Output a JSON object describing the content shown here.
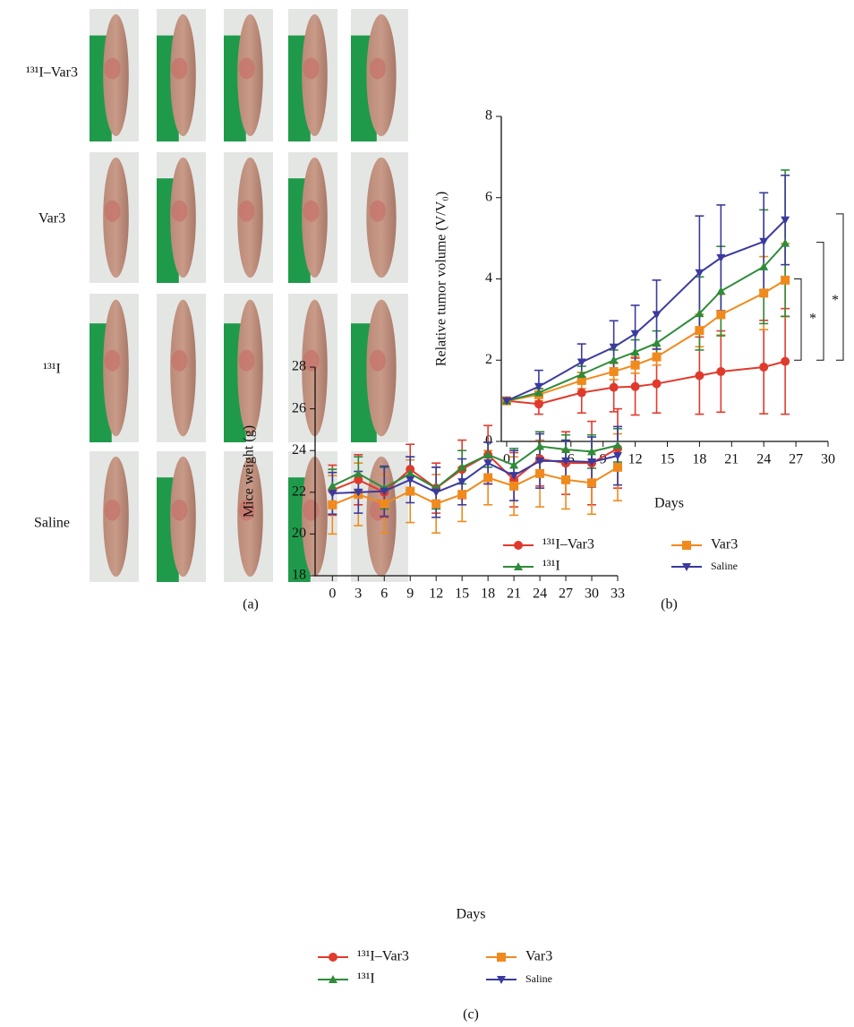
{
  "panel_a": {
    "row_labels": [
      "¹³¹I–Var3",
      "Var3",
      "¹³¹I",
      "Saline"
    ],
    "caption": "(a)"
  },
  "chart_data": [
    {
      "type": "line",
      "caption": "(b)",
      "xlabel": "Days",
      "ylabel": "Relative tumor volume (V/V₀)",
      "x": [
        0,
        3,
        7,
        10,
        12,
        14,
        18,
        20,
        24,
        26
      ],
      "xlim": [
        -0.5,
        30
      ],
      "xticks": [
        0,
        3,
        6,
        9,
        12,
        15,
        18,
        21,
        24,
        27,
        30
      ],
      "ylim": [
        0,
        8
      ],
      "yticks": [
        0,
        2,
        4,
        6,
        8
      ],
      "annotations": [
        "*",
        "*"
      ],
      "series": [
        {
          "name": "¹³¹I–Var3",
          "color": "#e03a2c",
          "marker": "circle",
          "values": [
            1.0,
            0.92,
            1.2,
            1.33,
            1.35,
            1.42,
            1.62,
            1.72,
            1.83,
            1.97
          ],
          "errors": [
            0.05,
            0.25,
            0.5,
            0.6,
            0.7,
            0.72,
            0.95,
            1.0,
            1.15,
            1.3
          ]
        },
        {
          "name": "Var3",
          "color": "#f08a1c",
          "marker": "square",
          "values": [
            1.0,
            1.15,
            1.5,
            1.72,
            1.88,
            2.08,
            2.73,
            3.12,
            3.65,
            3.97
          ],
          "errors": [
            0.05,
            0.15,
            0.2,
            0.2,
            0.2,
            0.2,
            0.4,
            0.5,
            0.9,
            0.9
          ]
        },
        {
          "name": "¹³¹I",
          "color": "#2e8b3a",
          "marker": "triangle-up",
          "values": [
            1.0,
            1.2,
            1.65,
            2.0,
            2.2,
            2.42,
            3.15,
            3.7,
            4.3,
            4.88
          ],
          "errors": [
            0.05,
            0.1,
            0.2,
            0.25,
            0.3,
            0.3,
            0.9,
            1.1,
            1.4,
            1.8
          ]
        },
        {
          "name": "Saline",
          "color": "#3b3a9e",
          "marker": "triangle-down",
          "values": [
            1.0,
            1.35,
            1.95,
            2.32,
            2.65,
            3.12,
            4.15,
            4.52,
            4.92,
            5.45
          ],
          "errors": [
            0.05,
            0.4,
            0.45,
            0.65,
            0.7,
            0.85,
            1.4,
            1.3,
            1.2,
            1.1
          ]
        }
      ]
    },
    {
      "type": "line",
      "caption": "(c)",
      "xlabel": "Days",
      "ylabel": "Mice weight (g)",
      "x": [
        0,
        3,
        6,
        9,
        12,
        15,
        18,
        21,
        24,
        27,
        30,
        33
      ],
      "xlim": [
        -2,
        33
      ],
      "xticks": [
        0,
        3,
        6,
        9,
        12,
        15,
        18,
        21,
        24,
        27,
        30,
        33
      ],
      "ylim": [
        18,
        28
      ],
      "yticks": [
        18,
        20,
        22,
        24,
        26,
        28
      ],
      "series": [
        {
          "name": "¹³¹I–Var3",
          "color": "#e03a2c",
          "marker": "circle",
          "values": [
            22.1,
            22.6,
            22.0,
            23.1,
            22.2,
            23.1,
            23.8,
            22.6,
            23.6,
            23.4,
            23.4,
            24.1
          ],
          "errors": [
            1.2,
            1.2,
            1.2,
            1.2,
            1.2,
            1.4,
            1.4,
            1.3,
            1.3,
            1.5,
            2.0,
            1.9
          ]
        },
        {
          "name": "Var3",
          "color": "#f08a1c",
          "marker": "square",
          "values": [
            21.4,
            21.9,
            21.45,
            22.05,
            21.45,
            21.9,
            22.7,
            22.3,
            22.9,
            22.6,
            22.45,
            23.2
          ],
          "errors": [
            1.4,
            1.5,
            1.4,
            1.5,
            1.4,
            1.3,
            1.3,
            1.4,
            1.6,
            1.4,
            1.5,
            1.6
          ]
        },
        {
          "name": "¹³¹I",
          "color": "#2e8b3a",
          "marker": "triangle-up",
          "values": [
            22.3,
            22.9,
            22.2,
            22.9,
            22.2,
            23.2,
            23.8,
            23.3,
            24.2,
            24.05,
            23.95,
            24.25
          ],
          "errors": [
            0.8,
            0.8,
            1.0,
            0.8,
            1.0,
            0.8,
            0.6,
            0.8,
            0.7,
            0.7,
            0.8,
            0.8
          ]
        },
        {
          "name": "Saline",
          "color": "#3b3a9e",
          "marker": "triangle-down",
          "values": [
            21.95,
            22.0,
            22.05,
            22.6,
            22.0,
            22.5,
            23.4,
            22.8,
            23.5,
            23.5,
            23.45,
            23.75
          ],
          "errors": [
            1.0,
            1.0,
            1.2,
            1.1,
            1.2,
            1.1,
            1.0,
            1.2,
            1.3,
            1.0,
            1.2,
            1.4
          ]
        }
      ]
    }
  ]
}
